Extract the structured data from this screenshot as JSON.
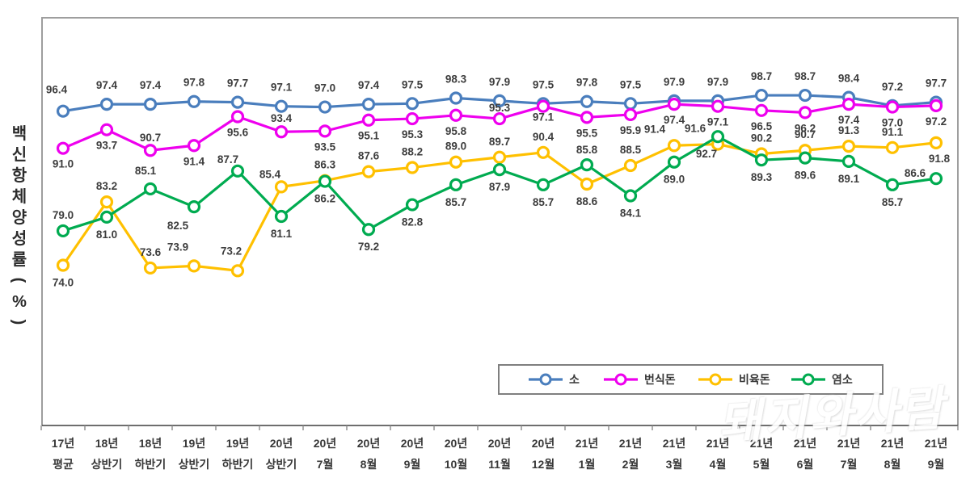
{
  "watermark": {
    "text": "돼지와사람"
  },
  "chart_data": {
    "type": "line",
    "title": "",
    "ylabel": "백신항체양성률(%)",
    "xlabel": "",
    "ylim": [
      50,
      100
    ],
    "grid": false,
    "legend_position": "inside-bottom",
    "marker": "open-circle",
    "categories": [
      [
        "17년",
        "평균"
      ],
      [
        "18년",
        "상반기"
      ],
      [
        "18년",
        "하반기"
      ],
      [
        "19년",
        "상반기"
      ],
      [
        "19년",
        "하반기"
      ],
      [
        "20년",
        "상반기"
      ],
      [
        "20년",
        "7월"
      ],
      [
        "20년",
        "8월"
      ],
      [
        "20년",
        "9월"
      ],
      [
        "20년",
        "10월"
      ],
      [
        "20년",
        "11월"
      ],
      [
        "20년",
        "12월"
      ],
      [
        "21년",
        "1월"
      ],
      [
        "21년",
        "2월"
      ],
      [
        "21년",
        "3월"
      ],
      [
        "21년",
        "4월"
      ],
      [
        "21년",
        "5월"
      ],
      [
        "21년",
        "6월"
      ],
      [
        "21년",
        "7월"
      ],
      [
        "21년",
        "8월"
      ],
      [
        "21년",
        "9월"
      ]
    ],
    "series": [
      {
        "name": "소",
        "color": "#4a7ebd",
        "values": [
          96.4,
          97.4,
          97.4,
          97.8,
          97.7,
          97.1,
          97.0,
          97.4,
          97.5,
          98.3,
          97.9,
          97.5,
          97.8,
          97.5,
          97.9,
          97.9,
          98.7,
          98.7,
          98.4,
          97.2,
          97.7
        ],
        "label_default": [
          0,
          -19
        ],
        "label_exceptions": {
          "0": [
            -8,
            -22
          ]
        }
      },
      {
        "name": "번식돈",
        "color": "#ee00ee",
        "values": [
          91.0,
          93.7,
          90.7,
          91.4,
          95.6,
          93.4,
          93.5,
          95.1,
          95.3,
          95.8,
          95.3,
          97.1,
          95.5,
          95.9,
          97.4,
          97.1,
          96.5,
          96.2,
          97.4,
          97.0,
          97.2
        ],
        "label_default": [
          0,
          24
        ],
        "label_exceptions": {
          "2": [
            0,
            -11
          ],
          "5": [
            0,
            -12
          ],
          "10": [
            0,
            -9
          ],
          "11": [
            0,
            18
          ]
        }
      },
      {
        "name": "비육돈",
        "color": "#ffc000",
        "values": [
          74.0,
          83.2,
          73.6,
          73.9,
          73.2,
          85.4,
          86.3,
          87.6,
          88.2,
          89.0,
          89.7,
          90.4,
          85.8,
          88.5,
          91.4,
          91.6,
          90.2,
          90.7,
          91.3,
          91.1,
          91.8
        ],
        "label_default": [
          0,
          -15
        ],
        "label_exceptions": {
          "0": [
            0,
            26
          ],
          "3": [
            -20,
            -19
          ],
          "4": [
            -8,
            -20
          ],
          "5": [
            -14,
            -11
          ],
          "12": [
            0,
            -38
          ],
          "14": [
            -24,
            -16
          ],
          "15": [
            -28,
            -15
          ],
          "20": [
            4,
            24
          ]
        }
      },
      {
        "name": "염소",
        "color": "#00ab50",
        "values": [
          79.0,
          81.0,
          85.1,
          82.5,
          87.7,
          81.1,
          86.2,
          79.2,
          82.8,
          85.7,
          87.9,
          85.7,
          88.6,
          84.1,
          89.0,
          92.7,
          89.3,
          89.6,
          89.1,
          85.7,
          86.6
        ],
        "label_default": [
          0,
          26
        ],
        "label_exceptions": {
          "0": [
            0,
            -15
          ],
          "2": [
            -6,
            -18
          ],
          "3": [
            -20,
            28
          ],
          "4": [
            -12,
            -10
          ],
          "12": [
            0,
            50
          ],
          "15": [
            -14,
            26
          ],
          "20": [
            -26,
            -2
          ]
        }
      }
    ],
    "legend": [
      "소",
      "번식돈",
      "비육돈",
      "염소"
    ]
  },
  "colors": {
    "plot_border": "#9e9e9e",
    "axis": "#3f3f3f",
    "tick": "#8c8c8c",
    "data_label": "#3d3d3d",
    "category_label": "#383838",
    "legend_border": "#7f7f7f",
    "axis_title": "#2b2b2b"
  }
}
